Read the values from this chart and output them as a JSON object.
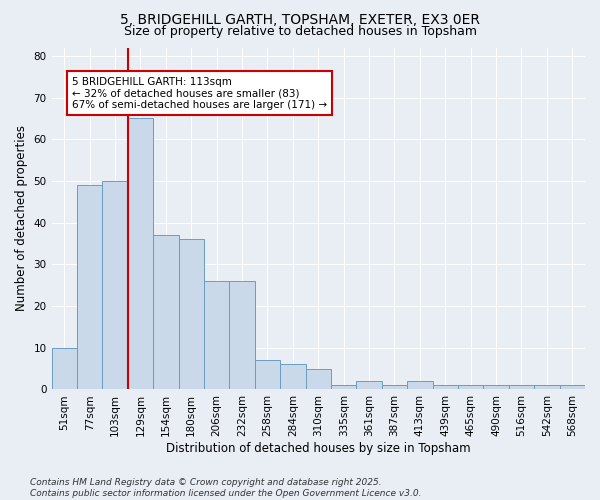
{
  "title_line1": "5, BRIDGEHILL GARTH, TOPSHAM, EXETER, EX3 0ER",
  "title_line2": "Size of property relative to detached houses in Topsham",
  "xlabel": "Distribution of detached houses by size in Topsham",
  "ylabel": "Number of detached properties",
  "categories": [
    "51sqm",
    "77sqm",
    "103sqm",
    "129sqm",
    "154sqm",
    "180sqm",
    "206sqm",
    "232sqm",
    "258sqm",
    "284sqm",
    "310sqm",
    "335sqm",
    "361sqm",
    "387sqm",
    "413sqm",
    "439sqm",
    "465sqm",
    "490sqm",
    "516sqm",
    "542sqm",
    "568sqm"
  ],
  "values": [
    10,
    49,
    50,
    65,
    37,
    36,
    26,
    26,
    7,
    6,
    5,
    1,
    2,
    1,
    2,
    1,
    1,
    1,
    1,
    1,
    1
  ],
  "bar_color": "#c9d9ea",
  "bar_edge_color": "#6a9dc0",
  "vline_color": "#cc0000",
  "vline_x_idx": 2.5,
  "annotation_text": "5 BRIDGEHILL GARTH: 113sqm\n← 32% of detached houses are smaller (83)\n67% of semi-detached houses are larger (171) →",
  "annotation_box_facecolor": "#ffffff",
  "annotation_box_edgecolor": "#cc0000",
  "ylim": [
    0,
    82
  ],
  "yticks": [
    0,
    10,
    20,
    30,
    40,
    50,
    60,
    70,
    80
  ],
  "bg_color": "#e8eef4",
  "plot_bg_color": "#e8eef4",
  "grid_color": "#ffffff",
  "footer_line1": "Contains HM Land Registry data © Crown copyright and database right 2025.",
  "footer_line2": "Contains public sector information licensed under the Open Government Licence v3.0.",
  "title_fontsize": 10,
  "subtitle_fontsize": 9,
  "xlabel_fontsize": 8.5,
  "ylabel_fontsize": 8.5,
  "tick_fontsize": 7.5,
  "annotation_fontsize": 7.5,
  "footer_fontsize": 6.5
}
